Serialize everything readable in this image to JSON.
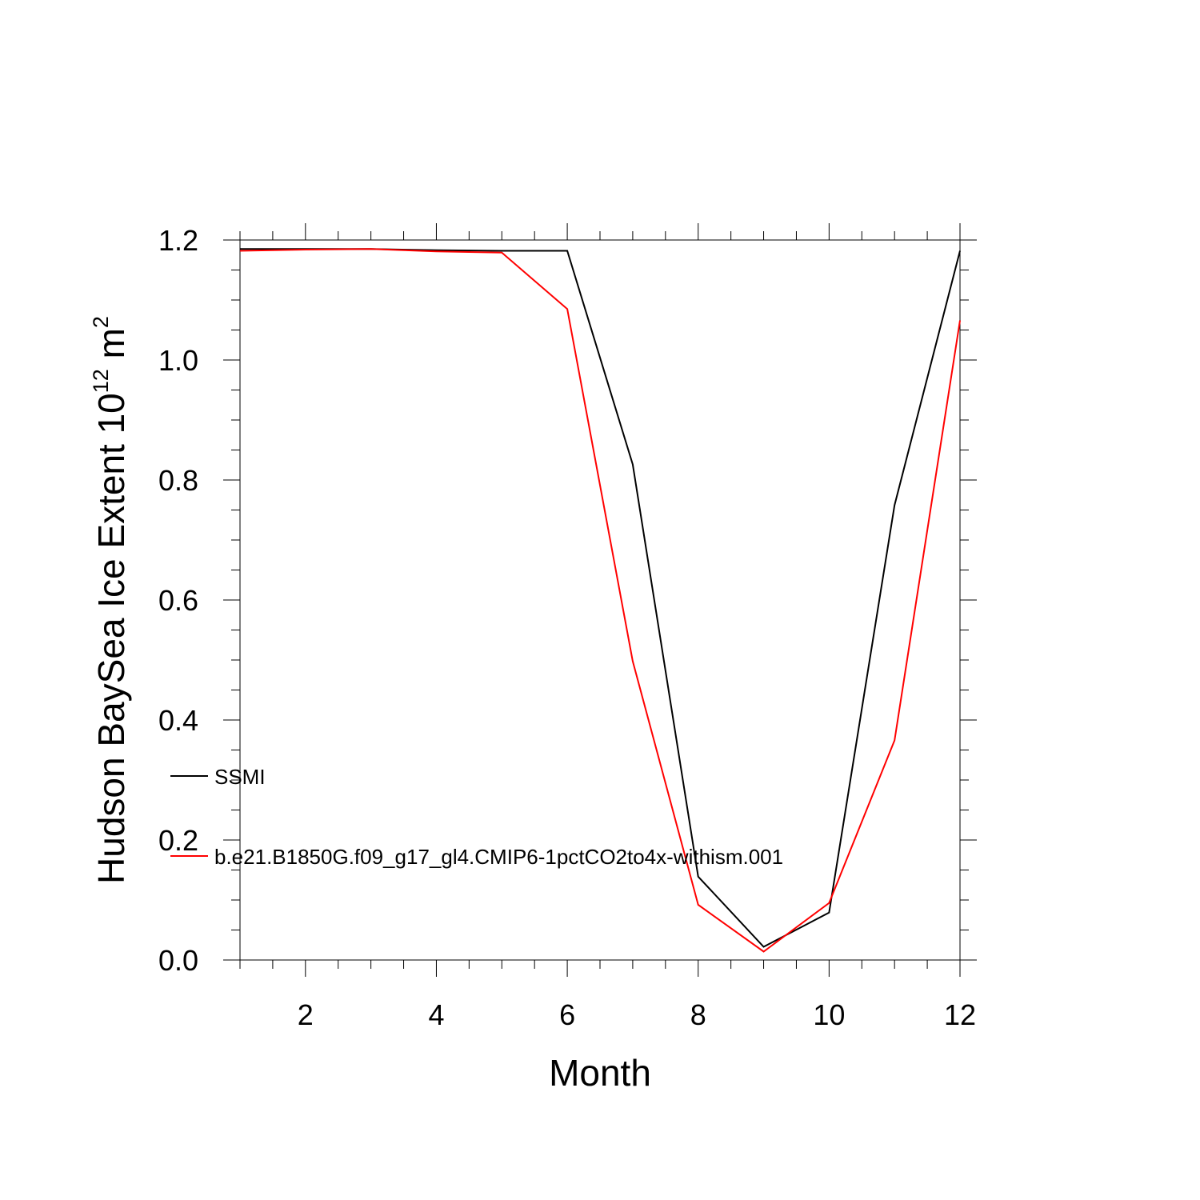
{
  "chart_data": {
    "type": "line",
    "xlabel": "Month",
    "ylabel_main": "Hudson BaySea Ice Extent 10",
    "ylabel_exp": "12",
    "ylabel_unit": " m",
    "ylabel_unit_exp": "2",
    "xlim": [
      1,
      12
    ],
    "ylim": [
      0,
      1.2
    ],
    "xticks": [
      "2",
      "4",
      "6",
      "8",
      "10",
      "12"
    ],
    "xtick_values": [
      2,
      4,
      6,
      8,
      10,
      12
    ],
    "yticks": [
      "0.0",
      "0.2",
      "0.4",
      "0.6",
      "0.8",
      "1.0",
      "1.2"
    ],
    "ytick_values": [
      0,
      0.2,
      0.4,
      0.6,
      0.8,
      1.0,
      1.2
    ],
    "x": [
      1,
      2,
      3,
      4,
      5,
      6,
      7,
      8,
      9,
      10,
      11,
      12
    ],
    "series": [
      {
        "name": "SSMI",
        "color": "#000000",
        "values": [
          1.185,
          1.185,
          1.185,
          1.183,
          1.182,
          1.182,
          0.826,
          0.139,
          0.022,
          0.079,
          0.758,
          1.182
        ]
      },
      {
        "name": "b.e21.B1850G.f09_g17_gl4.CMIP6-1pctCO2to4x-withism.001",
        "color": "#ff0000",
        "values": [
          1.182,
          1.184,
          1.185,
          1.181,
          1.179,
          1.085,
          0.498,
          0.092,
          0.014,
          0.095,
          0.366,
          1.066
        ]
      }
    ],
    "legend_position": "lower-left inside plot",
    "grid": false
  }
}
